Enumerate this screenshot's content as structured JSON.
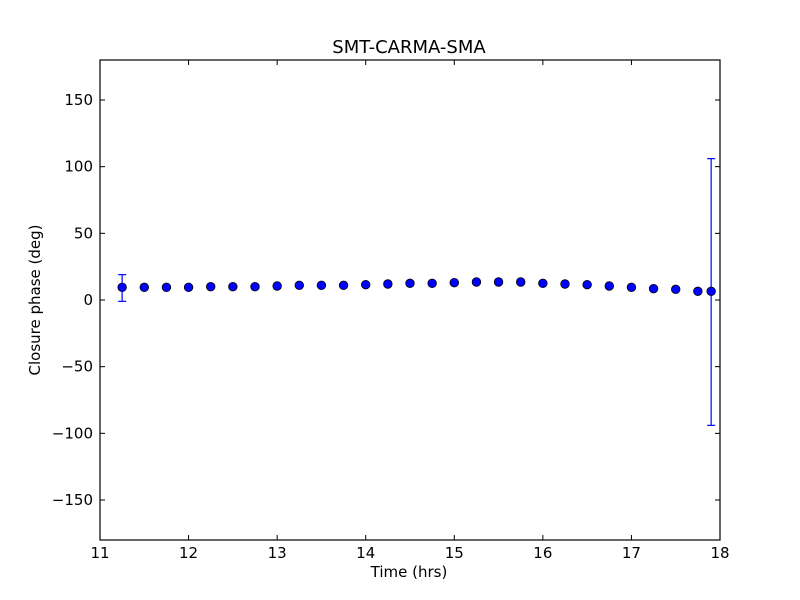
{
  "chart_data": {
    "type": "scatter",
    "title": "SMT-CARMA-SMA",
    "xlabel": "Time (hrs)",
    "ylabel": "Closure phase (deg)",
    "xlim": [
      11,
      18
    ],
    "ylim": [
      -180,
      180
    ],
    "x_ticks": [
      11,
      12,
      13,
      14,
      15,
      16,
      17,
      18
    ],
    "y_ticks": [
      -150,
      -100,
      -50,
      0,
      50,
      100,
      150
    ],
    "grid": false,
    "marker_color": "#0000ff",
    "errorbar_color": "#0000ff",
    "series": [
      {
        "x": [
          11.25,
          11.5,
          11.75,
          12.0,
          12.25,
          12.5,
          12.75,
          13.0,
          13.25,
          13.5,
          13.75,
          14.0,
          14.25,
          14.5,
          14.75,
          15.0,
          15.25,
          15.5,
          15.75,
          16.0,
          16.25,
          16.5,
          16.75,
          17.0,
          17.25,
          17.5,
          17.75,
          17.9
        ],
        "y": [
          9.5,
          9.5,
          9.5,
          9.5,
          10,
          10,
          10,
          10.5,
          11,
          11,
          11,
          11.5,
          12,
          12.5,
          12.5,
          13,
          13.5,
          13.5,
          13.5,
          12.5,
          12,
          11.5,
          10.5,
          9.5,
          8.5,
          8,
          6.5,
          6.5
        ],
        "errors": [
          {
            "x": 11.25,
            "low": -1,
            "high": 19
          },
          {
            "x": 17.9,
            "low": -94,
            "high": 106
          }
        ]
      }
    ]
  }
}
